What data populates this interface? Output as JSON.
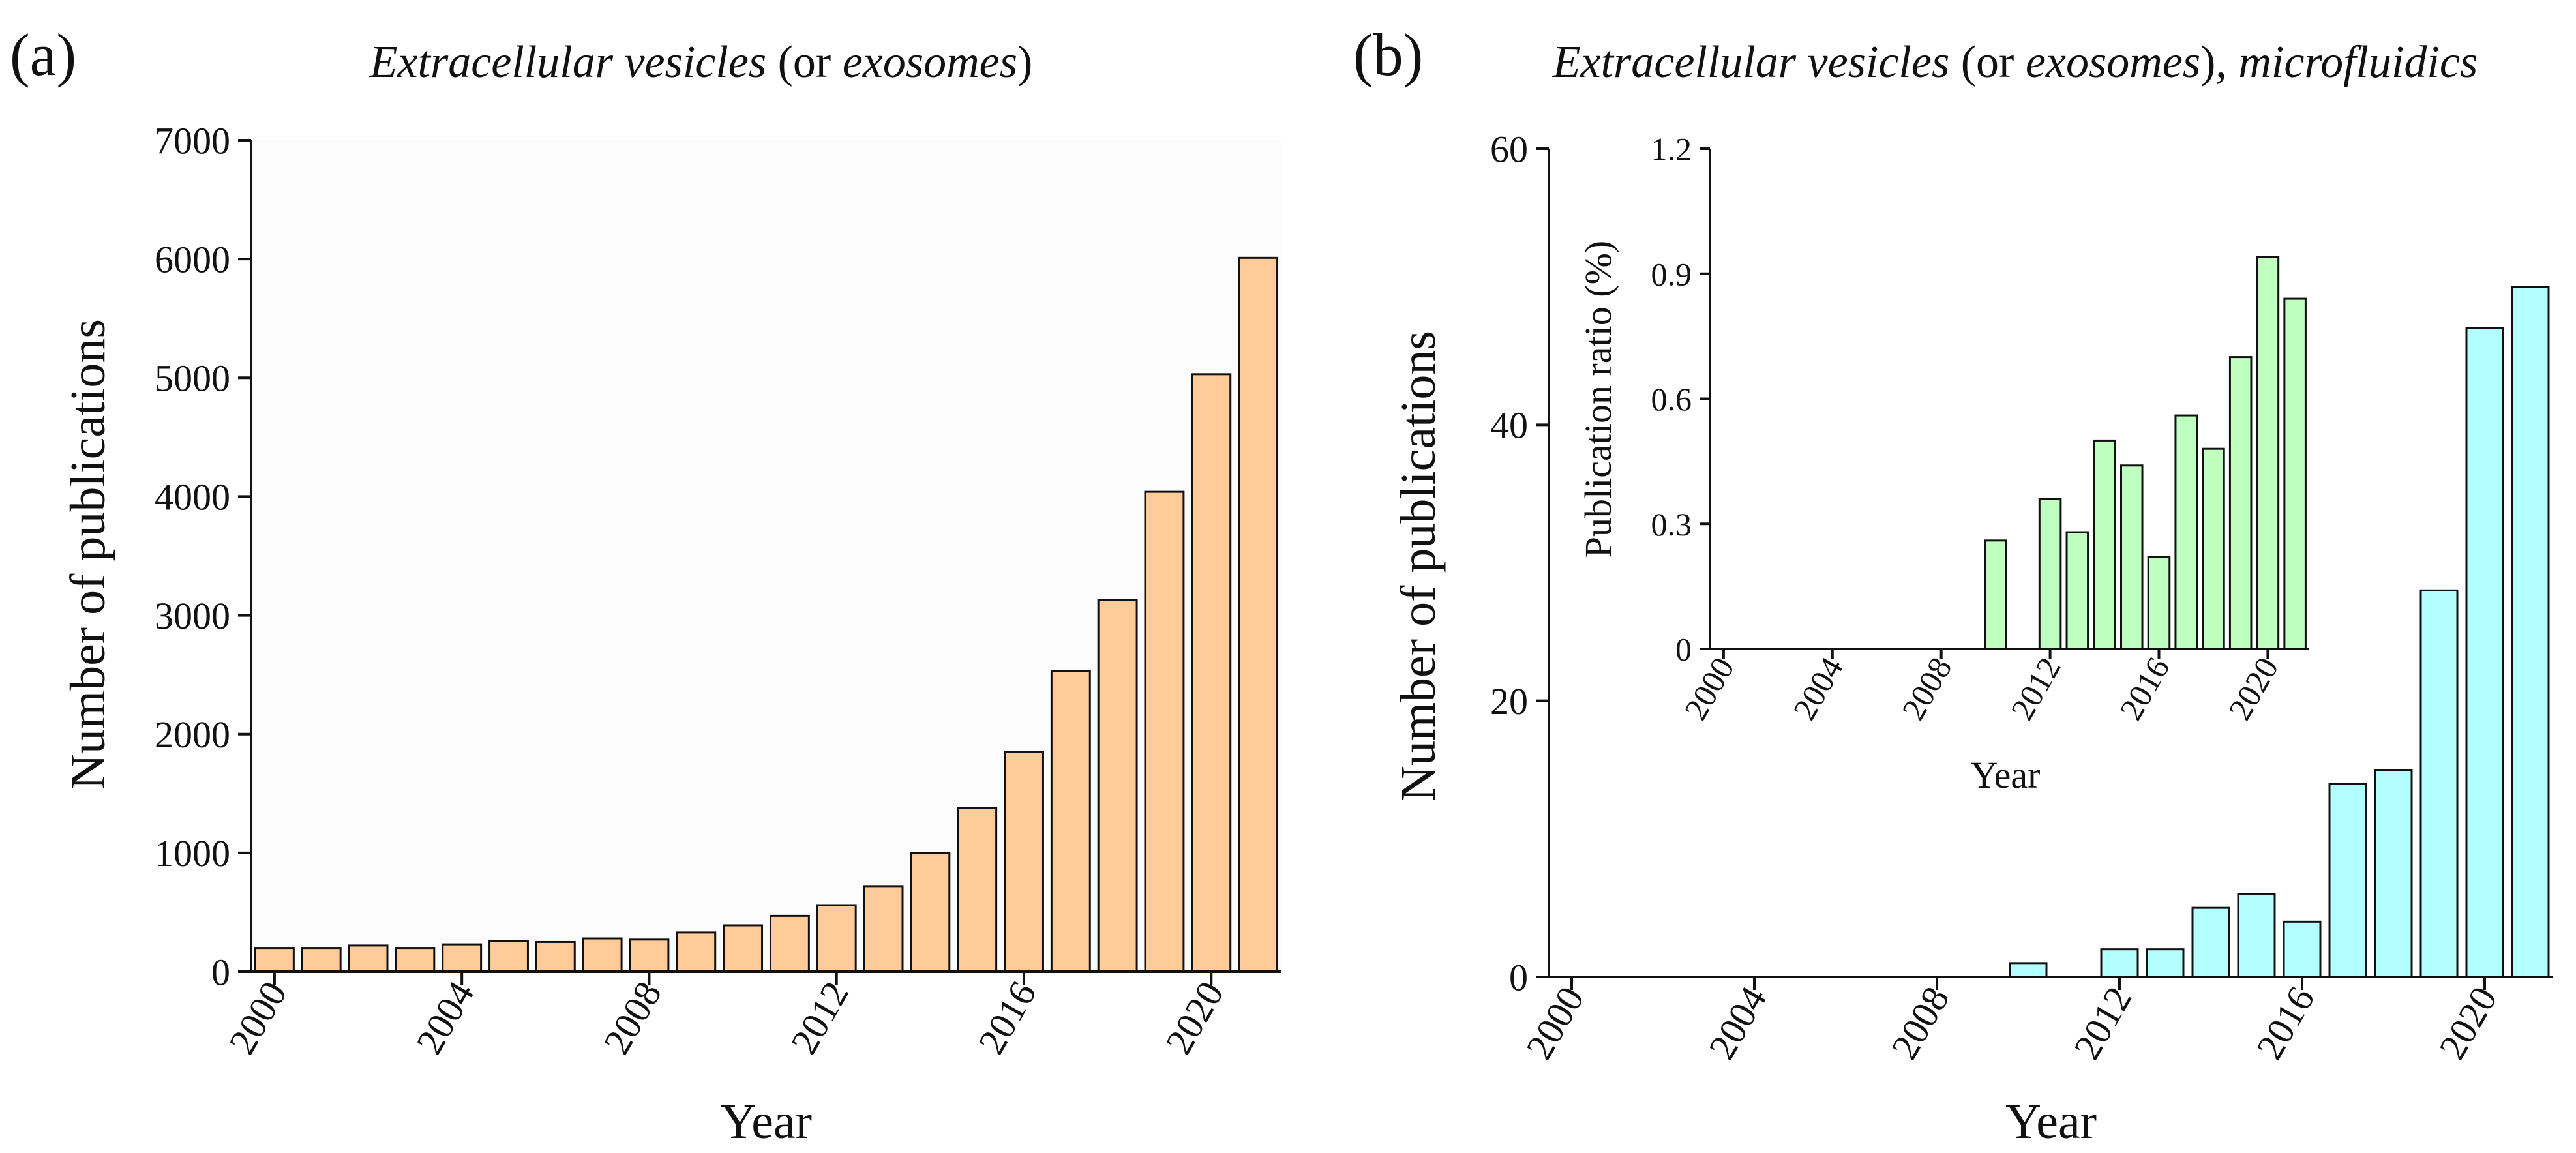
{
  "colors": {
    "panel_a_bar": "#FFCC99",
    "panel_b_bar": "#B3FFFF",
    "inset_bar": "#BFFFBF",
    "axis": "#111111"
  },
  "chart_data": [
    {
      "id": "a",
      "type": "bar",
      "panel_label": "(a)",
      "title": {
        "pre": "",
        "em1": "Extracellular vesicles",
        "mid": " (or ",
        "em2": "exosomes",
        "post": ")",
        "em3": ""
      },
      "xlabel": "Year",
      "ylabel": "Number of publications",
      "ylim": [
        0,
        7000
      ],
      "yticks": [
        0,
        1000,
        2000,
        3000,
        4000,
        5000,
        6000,
        7000
      ],
      "xticks": [
        2000,
        2004,
        2008,
        2012,
        2016,
        2020
      ],
      "x": [
        2000,
        2001,
        2002,
        2003,
        2004,
        2005,
        2006,
        2007,
        2008,
        2009,
        2010,
        2011,
        2012,
        2013,
        2014,
        2015,
        2016,
        2017,
        2018,
        2019,
        2020,
        2021
      ],
      "values": [
        200,
        200,
        220,
        200,
        230,
        260,
        250,
        280,
        270,
        330,
        390,
        470,
        560,
        720,
        1000,
        1380,
        1850,
        2530,
        3130,
        4040,
        5030,
        6010
      ]
    },
    {
      "id": "b",
      "type": "bar",
      "panel_label": "(b)",
      "title": {
        "pre": "",
        "em1": "Extracellular vesicles",
        "mid": " (or ",
        "em2": "exosomes",
        "post": "), ",
        "em3": "microfluidics"
      },
      "xlabel": "Year",
      "ylabel": "Number of publications",
      "ylim": [
        0,
        60
      ],
      "yticks": [
        0,
        20,
        40,
        60
      ],
      "xticks": [
        2000,
        2004,
        2008,
        2012,
        2016,
        2020
      ],
      "x": [
        2000,
        2001,
        2002,
        2003,
        2004,
        2005,
        2006,
        2007,
        2008,
        2009,
        2010,
        2011,
        2012,
        2013,
        2014,
        2015,
        2016,
        2017,
        2018,
        2019,
        2020,
        2021
      ],
      "values": [
        0,
        0,
        0,
        0,
        0,
        0,
        0,
        0,
        0,
        0,
        1,
        0,
        2,
        2,
        5,
        6,
        4,
        14,
        15,
        28,
        47,
        50
      ]
    },
    {
      "id": "b-inset",
      "type": "bar",
      "xlabel": "Year",
      "ylabel": "Publication ratio (%)",
      "ylim": [
        0,
        1.2
      ],
      "yticks": [
        0,
        0.3,
        0.6,
        0.9,
        1.2
      ],
      "ytick_labels": [
        "0",
        "0.3",
        "0.6",
        "0.9",
        "1.2"
      ],
      "xticks": [
        2000,
        2004,
        2008,
        2012,
        2016,
        2020
      ],
      "x": [
        2000,
        2001,
        2002,
        2003,
        2004,
        2005,
        2006,
        2007,
        2008,
        2009,
        2010,
        2011,
        2012,
        2013,
        2014,
        2015,
        2016,
        2017,
        2018,
        2019,
        2020,
        2021
      ],
      "values": [
        0,
        0,
        0,
        0,
        0,
        0,
        0,
        0,
        0,
        0,
        0.26,
        0,
        0.36,
        0.28,
        0.5,
        0.44,
        0.22,
        0.56,
        0.48,
        0.7,
        0.94,
        0.84
      ]
    }
  ]
}
